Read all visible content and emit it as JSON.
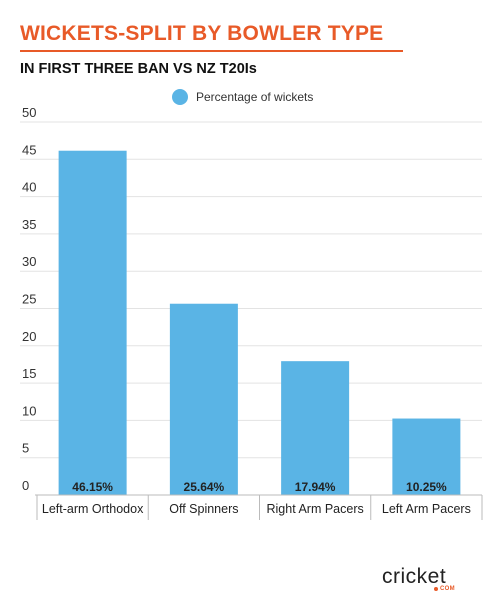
{
  "header": {
    "title": "WICKETS-SPLIT BY BOWLER TYPE",
    "subtitle": "IN FIRST THREE BAN VS NZ T20Is"
  },
  "brand": {
    "logo_text": "cricket",
    "logo_sub": "COM"
  },
  "colors": {
    "accent": "#e85a28",
    "bar": "#5ab4e5",
    "grid": "#e3e3e3"
  },
  "chart_data": {
    "type": "bar",
    "categories": [
      "Left-arm Orthodox",
      "Off Spinners",
      "Right Arm Pacers",
      "Left Arm Pacers"
    ],
    "series": [
      {
        "name": "Percentage of wickets",
        "values": [
          46.15,
          25.64,
          17.94,
          10.25
        ]
      }
    ],
    "data_labels": [
      "46.15%",
      "25.64%",
      "17.94%",
      "10.25%"
    ],
    "ylim": [
      0,
      50
    ],
    "yticks": [
      0,
      5,
      10,
      15,
      20,
      25,
      30,
      35,
      40,
      45,
      50
    ],
    "grid": true,
    "legend": "top-center"
  }
}
